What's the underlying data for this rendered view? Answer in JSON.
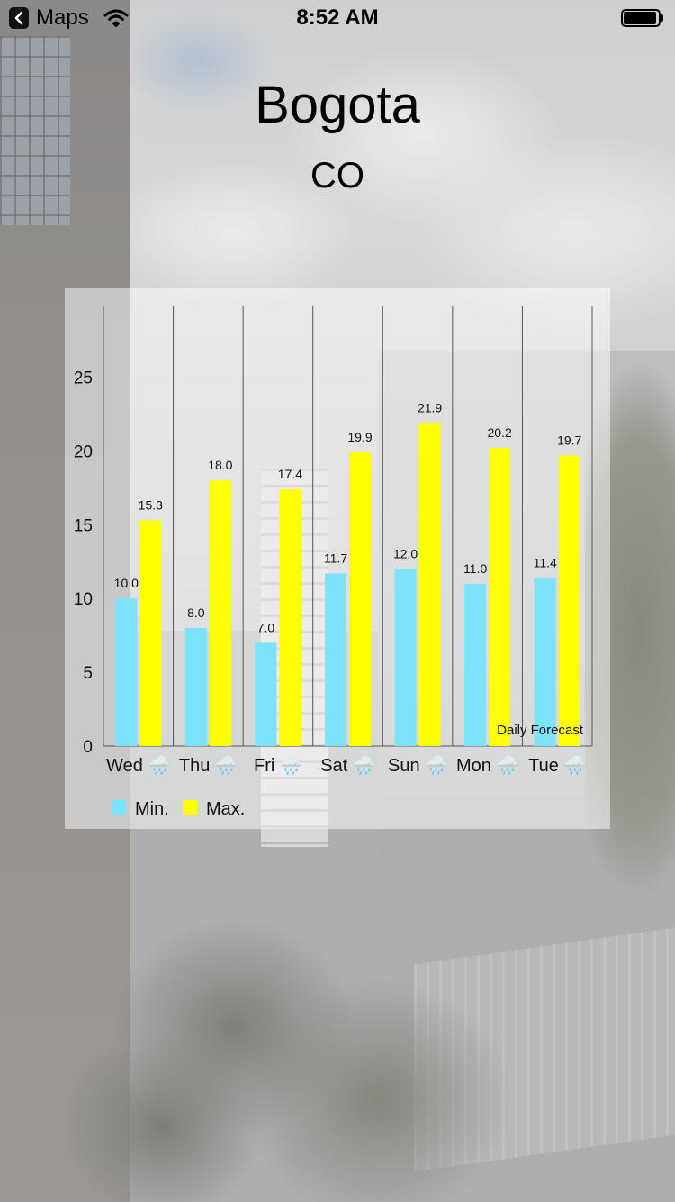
{
  "status_bar": {
    "back_app": "Maps",
    "time": "8:52 AM"
  },
  "header": {
    "city": "Bogota",
    "country": "CO"
  },
  "chart_data": {
    "type": "bar",
    "description": "Daily Forecast",
    "categories": [
      "Wed",
      "Thu",
      "Fri",
      "Sat",
      "Sun",
      "Mon",
      "Tue"
    ],
    "category_icon": "🌧️",
    "series": [
      {
        "name": "Min.",
        "values": [
          10.0,
          8.0,
          7.0,
          11.7,
          12.0,
          11.0,
          11.4
        ],
        "color": "#7de3fb"
      },
      {
        "name": "Max.",
        "values": [
          15.3,
          18.0,
          17.4,
          19.9,
          21.9,
          20.2,
          19.7
        ],
        "color": "#ffff00"
      }
    ],
    "y_ticks": [
      0,
      5,
      10,
      15,
      20,
      25
    ],
    "ylim": [
      0,
      29.8
    ],
    "grid": {
      "vertical": true,
      "horizontal": false
    },
    "legend_position": "bottom-left"
  }
}
